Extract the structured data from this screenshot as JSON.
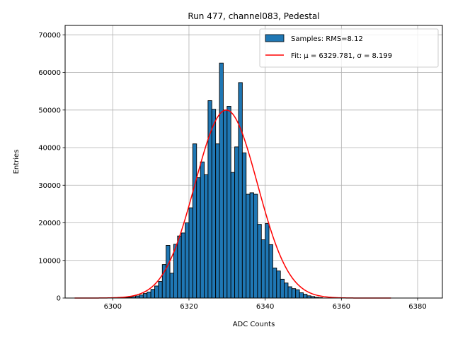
{
  "chart_data": {
    "type": "bar",
    "title": "Run 477, channel083, Pedestal",
    "xlabel": "ADC Counts",
    "ylabel": "Entries",
    "xlim": [
      6287.5,
      6386.5
    ],
    "ylim": [
      0,
      72500
    ],
    "xticks": [
      6300,
      6320,
      6340,
      6360,
      6380
    ],
    "yticks": [
      0,
      10000,
      20000,
      30000,
      40000,
      50000,
      60000,
      70000
    ],
    "grid": true,
    "legend_position": "upper-right",
    "histogram": {
      "name": "Samples: RMS=8.12",
      "color": "#1f77b4",
      "bin_start": 6290,
      "bin_width": 1,
      "counts": [
        0,
        0,
        0,
        0,
        0,
        0,
        0,
        0,
        0,
        0,
        0,
        0,
        0,
        100,
        200,
        350,
        550,
        800,
        1200,
        1600,
        2300,
        3200,
        4400,
        8900,
        14000,
        6600,
        14300,
        16500,
        17300,
        20000,
        24000,
        41000,
        32000,
        36200,
        32800,
        52500,
        50200,
        41000,
        62500,
        50000,
        51000,
        33400,
        40200,
        57300,
        38600,
        27600,
        28000,
        27600,
        19600,
        15500,
        19800,
        14200,
        8000,
        7200,
        5000,
        4000,
        3000,
        2500,
        2200,
        1400,
        1000,
        600,
        400,
        200,
        100,
        0,
        0,
        0,
        0,
        0,
        0,
        0,
        0,
        0,
        0,
        0,
        0,
        0,
        0,
        0,
        0,
        0,
        0
      ]
    },
    "fit": {
      "name": "Fit: μ = 6329.781, σ = 8.199",
      "color": "#ff0000",
      "mu": 6329.781,
      "sigma": 8.199,
      "amplitude": 50000,
      "x_range": [
        6290,
        6373
      ]
    }
  }
}
